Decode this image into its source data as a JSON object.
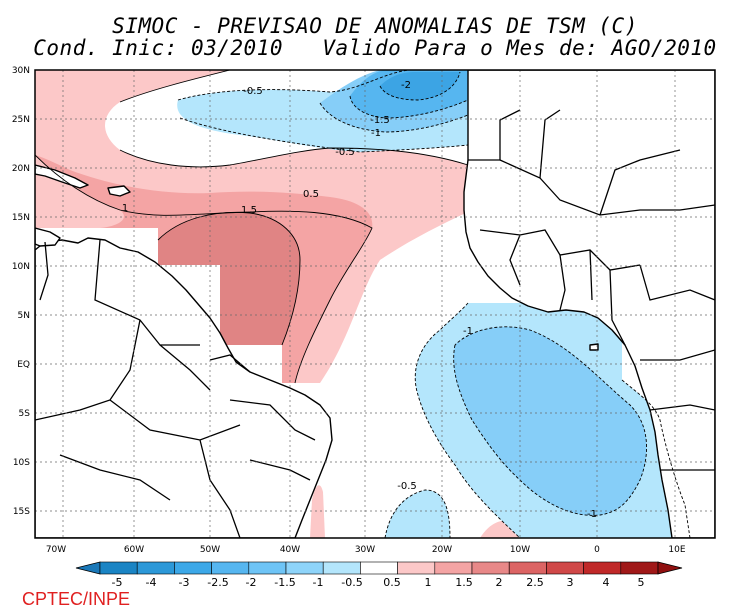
{
  "title_line1": "SIMOC - PREVISAO DE ANOMALIAS DE TSM (C)",
  "title_line2": "Cond. Inic: 03/2010   Valido Para o Mes de: AGO/2010",
  "credit": "CPTEC/INPE",
  "lat_labels": [
    "30N",
    "25N",
    "20N",
    "15N",
    "10N",
    "5N",
    "EQ",
    "5S",
    "10S",
    "15S"
  ],
  "lon_labels": [
    "70W",
    "60W",
    "50W",
    "40W",
    "30W",
    "20W",
    "10W",
    "0",
    "10E"
  ],
  "contour_labels": [
    "-2",
    "-1.5",
    "-1",
    "-0.5",
    "-0.5",
    "0.5",
    "1",
    "1.5",
    "-1",
    "-0.5",
    "-1"
  ],
  "colorbar": {
    "labels": [
      "-5",
      "-4",
      "-3",
      "-2.5",
      "-2",
      "-1.5",
      "-1",
      "-0.5",
      "0.5",
      "1",
      "1.5",
      "2",
      "2.5",
      "3",
      "4",
      "5"
    ],
    "colors": [
      "#1a84c4",
      "#2c98d8",
      "#3ca8e8",
      "#56b6f0",
      "#6ec4f6",
      "#8ed4fa",
      "#b4e6fc",
      "#ffffff",
      "#fcc8c8",
      "#f4a4a4",
      "#e88888",
      "#dc6464",
      "#d04848",
      "#c02828",
      "#a01818"
    ],
    "left_arrow_color": "#1a78b8",
    "right_arrow_color": "#901010"
  },
  "colors": {
    "pos_05": "#fcc8c8",
    "pos_10": "#f4a4a4",
    "pos_15": "#e08484",
    "neg_05": "#b4e6fc",
    "neg_10": "#86cef8",
    "neg_15": "#56b6f0",
    "neg_20": "#3ca4e4"
  }
}
